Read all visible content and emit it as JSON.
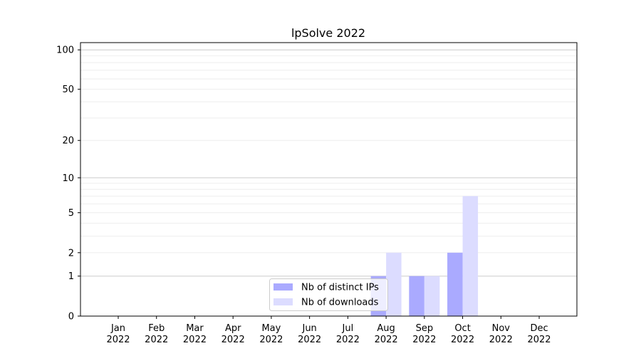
{
  "chart_data": {
    "type": "bar",
    "title": "lpSolve 2022",
    "xlabel": "",
    "ylabel": "",
    "yscale": "symlog (log10(1+y))",
    "ylim": [
      0,
      113
    ],
    "yticks": [
      0,
      1,
      2,
      5,
      10,
      20,
      50,
      100
    ],
    "grid": true,
    "legend_position": "lower-center",
    "categories": [
      "Jan\n2022",
      "Feb\n2022",
      "Mar\n2022",
      "Apr\n2022",
      "May\n2022",
      "Jun\n2022",
      "Jul\n2022",
      "Aug\n2022",
      "Sep\n2022",
      "Oct\n2022",
      "Nov\n2022",
      "Dec\n2022"
    ],
    "series": [
      {
        "name": "Nb of distinct IPs",
        "color": "#aaaaff",
        "values": [
          0,
          0,
          0,
          0,
          0,
          0,
          0,
          1,
          1,
          2,
          0,
          0
        ]
      },
      {
        "name": "Nb of downloads",
        "color": "#dcdcff",
        "values": [
          0,
          0,
          0,
          0,
          0,
          0,
          0,
          2,
          1,
          7,
          0,
          0
        ]
      }
    ]
  }
}
